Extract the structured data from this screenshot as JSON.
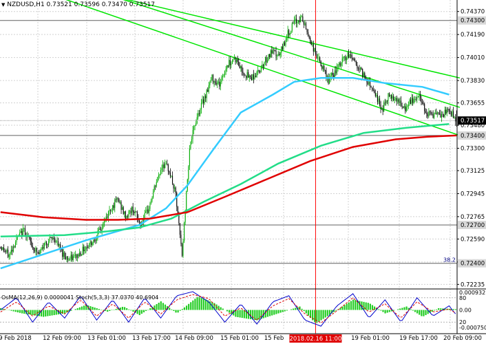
{
  "header": {
    "symbol_line": "NZDUSD,H1  0.73521 0.73596 0.73470 0.73517",
    "symbol_dropdown_icon": "triangle-down-icon"
  },
  "price_axis": {
    "labels": [
      "0.74370",
      "0.74190",
      "0.74010",
      "0.73830",
      "0.73655",
      "0.73480",
      "0.73300",
      "0.73125",
      "0.72945",
      "0.72765",
      "0.72590",
      "0.72410",
      "0.72235"
    ],
    "highlighted_levels": [
      {
        "price": 0.743,
        "label": "0.74300"
      },
      {
        "price": 0.734,
        "label": "0.73400"
      },
      {
        "price": 0.727,
        "label": "0.72700"
      },
      {
        "price": 0.724,
        "label": "0.72400"
      }
    ],
    "current_price": {
      "price": 0.73517,
      "label": "0.73517"
    },
    "fib_label": "38.2"
  },
  "indicator_panel": {
    "title": "OsMA(12,26,9) 0.0000041  Stoch(5,3,3) 37.0370 40.6904",
    "levels": [
      {
        "value": 0.00093,
        "label": "0.000932"
      },
      {
        "value": 80,
        "label": "80"
      },
      {
        "value": 0,
        "label": "0.00"
      },
      {
        "value": 20,
        "label": "20"
      },
      {
        "value": -0.00075,
        "label": "-0.000750"
      }
    ]
  },
  "time_axis": {
    "labels": [
      "9 Feb 2018",
      "12 Feb 09:00",
      "13 Feb 01:00",
      "13 Feb 17:00",
      "14 Feb 09:00",
      "15 Feb 01:00",
      "15 Feb",
      "19 Feb 01:00",
      "19 Feb 17:00",
      "20 Feb 09:00"
    ],
    "highlighted_label": "2018.02.16 11:00"
  },
  "colors": {
    "up_candle": "#00aa00",
    "down_candle": "#000000",
    "channel": "#00e600",
    "ma_fast": "#33ccff",
    "ma_mid": "#22dd88",
    "ma_slow": "#e00000",
    "vline": "#ff0000",
    "grid": "#d0d0d0",
    "osma": "#22cc22",
    "stoch_main": "#0000cc",
    "stoch_signal": "#dd0000"
  },
  "chart_data": {
    "type": "candlestick",
    "symbol": "NZDUSD",
    "timeframe": "H1",
    "last_bar": {
      "open": 0.73521,
      "high": 0.73596,
      "low": 0.7347,
      "close": 0.73517
    },
    "ylim": [
      0.7221,
      0.7446
    ],
    "close_path": [
      [
        0,
        0.7253
      ],
      [
        8,
        0.7246
      ],
      [
        15,
        0.7259
      ],
      [
        22,
        0.7266
      ],
      [
        30,
        0.7253
      ],
      [
        36,
        0.7247
      ],
      [
        42,
        0.7256
      ],
      [
        50,
        0.726
      ],
      [
        58,
        0.7248
      ],
      [
        64,
        0.7243
      ],
      [
        72,
        0.7246
      ],
      [
        80,
        0.7253
      ],
      [
        87,
        0.7258
      ],
      [
        95,
        0.7268
      ],
      [
        103,
        0.7283
      ],
      [
        110,
        0.729
      ],
      [
        117,
        0.7276
      ],
      [
        124,
        0.7283
      ],
      [
        131,
        0.727
      ],
      [
        138,
        0.7281
      ],
      [
        145,
        0.7301
      ],
      [
        152,
        0.7318
      ],
      [
        158,
        0.7313
      ],
      [
        164,
        0.7293
      ],
      [
        170,
        0.7246
      ],
      [
        177,
        0.7331
      ],
      [
        184,
        0.7355
      ],
      [
        191,
        0.737
      ],
      [
        198,
        0.7385
      ],
      [
        205,
        0.738
      ],
      [
        212,
        0.7395
      ],
      [
        219,
        0.7401
      ],
      [
        226,
        0.7391
      ],
      [
        233,
        0.7385
      ],
      [
        240,
        0.7388
      ],
      [
        247,
        0.7398
      ],
      [
        254,
        0.7405
      ],
      [
        261,
        0.7402
      ],
      [
        268,
        0.7418
      ],
      [
        275,
        0.7428
      ],
      [
        282,
        0.7432
      ],
      [
        287,
        0.7421
      ],
      [
        293,
        0.7408
      ],
      [
        300,
        0.7395
      ],
      [
        307,
        0.7383
      ],
      [
        314,
        0.739
      ],
      [
        321,
        0.74
      ],
      [
        328,
        0.7403
      ],
      [
        335,
        0.7393
      ],
      [
        342,
        0.7385
      ],
      [
        350,
        0.7375
      ],
      [
        357,
        0.736
      ],
      [
        364,
        0.7372
      ],
      [
        371,
        0.7369
      ],
      [
        378,
        0.736
      ],
      [
        385,
        0.7367
      ],
      [
        392,
        0.7371
      ],
      [
        399,
        0.7358
      ],
      [
        406,
        0.7356
      ],
      [
        413,
        0.7355
      ],
      [
        420,
        0.736
      ],
      [
        427,
        0.7352
      ]
    ],
    "moving_averages": [
      {
        "color": "ma_fast",
        "points": [
          [
            0,
            0.7236
          ],
          [
            40,
            0.7247
          ],
          [
            80,
            0.7258
          ],
          [
            130,
            0.727
          ],
          [
            155,
            0.7283
          ],
          [
            175,
            0.7301
          ],
          [
            200,
            0.733
          ],
          [
            225,
            0.7358
          ],
          [
            255,
            0.7372
          ],
          [
            275,
            0.7382
          ],
          [
            300,
            0.7385
          ],
          [
            330,
            0.7385
          ],
          [
            360,
            0.7381
          ],
          [
            395,
            0.7378
          ],
          [
            420,
            0.7372
          ]
        ]
      },
      {
        "color": "ma_mid",
        "points": [
          [
            0,
            0.7261
          ],
          [
            60,
            0.7262
          ],
          [
            100,
            0.7265
          ],
          [
            130,
            0.7268
          ],
          [
            160,
            0.7275
          ],
          [
            190,
            0.7288
          ],
          [
            225,
            0.7302
          ],
          [
            260,
            0.7318
          ],
          [
            300,
            0.7332
          ],
          [
            340,
            0.7342
          ],
          [
            380,
            0.7346
          ],
          [
            420,
            0.7349
          ]
        ]
      },
      {
        "color": "ma_slow",
        "points": [
          [
            0,
            0.728
          ],
          [
            40,
            0.7276
          ],
          [
            80,
            0.7274
          ],
          [
            110,
            0.7274
          ],
          [
            140,
            0.7275
          ],
          [
            175,
            0.728
          ],
          [
            210,
            0.7292
          ],
          [
            250,
            0.7306
          ],
          [
            290,
            0.732
          ],
          [
            330,
            0.7331
          ],
          [
            370,
            0.7337
          ],
          [
            400,
            0.7339
          ],
          [
            427,
            0.734
          ]
        ]
      }
    ],
    "channel_lines": [
      {
        "points": [
          [
            110,
            0.7448
          ],
          [
            430,
            0.7385
          ]
        ]
      },
      {
        "points": [
          [
            90,
            0.7453
          ],
          [
            430,
            0.7362
          ]
        ]
      },
      {
        "points": [
          [
            0,
            0.7464
          ],
          [
            430,
            0.734
          ]
        ]
      }
    ],
    "vertical_marker_bar": 295,
    "indicator": {
      "osma_hist": [
        [
          0,
          0.5
        ],
        [
          20,
          -1
        ],
        [
          40,
          -2
        ],
        [
          60,
          -1
        ],
        [
          80,
          1.5
        ],
        [
          100,
          -0.5
        ],
        [
          115,
          1
        ],
        [
          130,
          -1.5
        ],
        [
          150,
          2.5
        ],
        [
          165,
          -1
        ],
        [
          185,
          4
        ],
        [
          200,
          2
        ],
        [
          220,
          -2
        ],
        [
          240,
          -3
        ],
        [
          260,
          -1
        ],
        [
          280,
          1
        ],
        [
          295,
          -4
        ],
        [
          310,
          -1
        ],
        [
          330,
          3
        ],
        [
          345,
          2
        ],
        [
          360,
          -1
        ],
        [
          380,
          1
        ],
        [
          395,
          -2
        ],
        [
          410,
          0.5
        ],
        [
          427,
          0.2
        ]
      ],
      "stoch_main": [
        [
          0,
          50
        ],
        [
          15,
          80
        ],
        [
          30,
          20
        ],
        [
          45,
          70
        ],
        [
          60,
          30
        ],
        [
          75,
          85
        ],
        [
          90,
          25
        ],
        [
          105,
          75
        ],
        [
          120,
          20
        ],
        [
          135,
          80
        ],
        [
          150,
          30
        ],
        [
          165,
          85
        ],
        [
          180,
          95
        ],
        [
          195,
          70
        ],
        [
          210,
          20
        ],
        [
          225,
          65
        ],
        [
          240,
          15
        ],
        [
          255,
          70
        ],
        [
          270,
          85
        ],
        [
          285,
          25
        ],
        [
          300,
          10
        ],
        [
          315,
          60
        ],
        [
          330,
          90
        ],
        [
          345,
          30
        ],
        [
          360,
          75
        ],
        [
          375,
          20
        ],
        [
          390,
          80
        ],
        [
          405,
          35
        ],
        [
          420,
          60
        ],
        [
          427,
          37
        ]
      ],
      "stoch_signal": [
        [
          0,
          45
        ],
        [
          15,
          70
        ],
        [
          30,
          35
        ],
        [
          45,
          60
        ],
        [
          60,
          40
        ],
        [
          75,
          75
        ],
        [
          90,
          35
        ],
        [
          105,
          65
        ],
        [
          120,
          30
        ],
        [
          135,
          70
        ],
        [
          150,
          40
        ],
        [
          165,
          75
        ],
        [
          180,
          88
        ],
        [
          195,
          78
        ],
        [
          210,
          35
        ],
        [
          225,
          55
        ],
        [
          240,
          25
        ],
        [
          255,
          60
        ],
        [
          270,
          78
        ],
        [
          285,
          40
        ],
        [
          300,
          18
        ],
        [
          315,
          48
        ],
        [
          330,
          80
        ],
        [
          345,
          45
        ],
        [
          360,
          65
        ],
        [
          375,
          30
        ],
        [
          390,
          70
        ],
        [
          405,
          45
        ],
        [
          420,
          52
        ],
        [
          427,
          41
        ]
      ]
    }
  }
}
